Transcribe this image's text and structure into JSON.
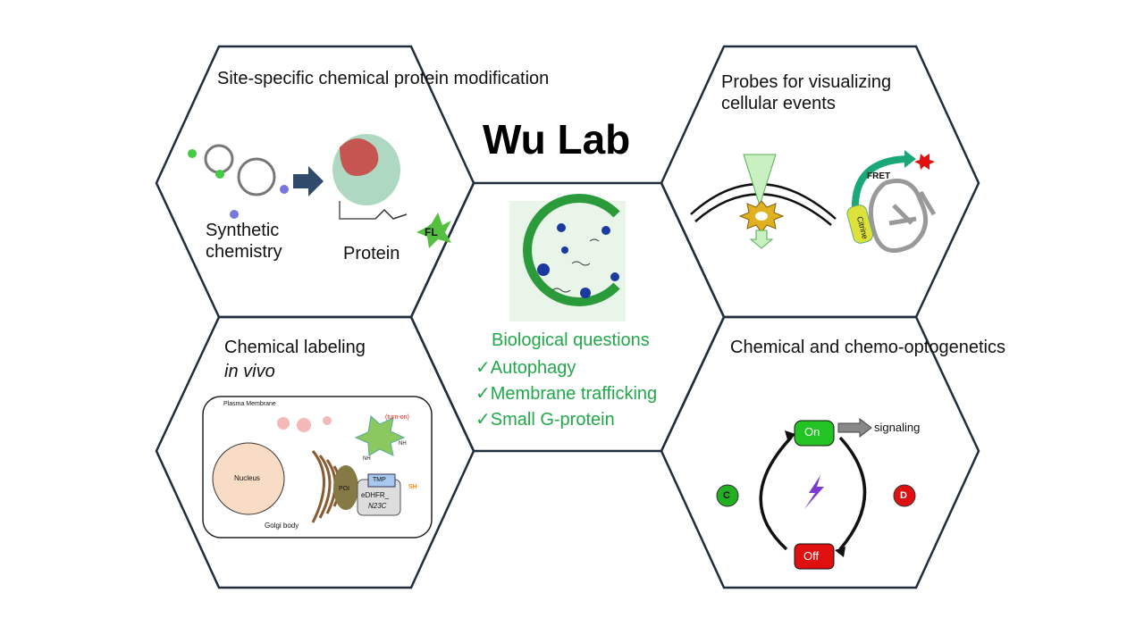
{
  "title": "Wu Lab",
  "cells": {
    "site_specific": {
      "heading": "Site-specific chemical protein modification",
      "label_left": "Synthetic chemistry",
      "label_right": "Protein",
      "fl_tag": "FL"
    },
    "probes": {
      "heading": "Probes for visualizing cellular events",
      "fret": "FRET",
      "citrine": "Citrine"
    },
    "labeling": {
      "heading": "Chemical labeling",
      "heading_italic": "in vivo",
      "plasma_membrane": "Plasma Membrane",
      "turn_on": "(turn-on)",
      "nucleus": "Nucleus",
      "golgi": "Golgi body",
      "poi": "POI",
      "tmp": "TMP",
      "edhfr": "eDHFR_",
      "n23c": "N23C",
      "sh": "SH",
      "nh1": "NH",
      "nh2": "NH"
    },
    "optogenetics": {
      "heading": "Chemical and chemo-optogenetics",
      "on": "On",
      "off": "Off",
      "signaling": "signaling",
      "c": "C",
      "d": "D"
    },
    "center": {
      "heading": "Biological questions",
      "items": [
        "✓Autophagy",
        "✓Membrane trafficking",
        "✓Small G-protein"
      ]
    }
  },
  "colors": {
    "hex_stroke": "#1f2d3d",
    "green_text": "#21a84a",
    "on": "#22c322",
    "off": "#e01010"
  }
}
